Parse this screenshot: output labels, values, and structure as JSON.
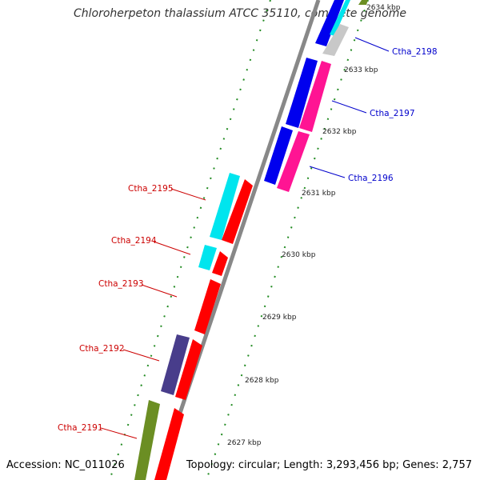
{
  "title": "Chloroherpeton thalassium ATCC 35110, complete genome",
  "footer": {
    "accession": "Accession: NC_011026",
    "summary": "Topology: circular; Length: 3,293,456 bp; Genes: 2,757"
  },
  "ticks": [
    "2634 kbp",
    "2633 kbp",
    "2632 kbp",
    "2631 kbp",
    "2630 kbp",
    "2629 kbp",
    "2628 kbp",
    "2627 kbp"
  ],
  "gene_labels": {
    "ctha_2198": "Ctha_2198",
    "ctha_2197": "Ctha_2197",
    "ctha_2196": "Ctha_2196",
    "ctha_2195": "Ctha_2195",
    "ctha_2194": "Ctha_2194",
    "ctha_2193": "Ctha_2193",
    "ctha_2192": "Ctha_2192",
    "ctha_2191": "Ctha_2191"
  },
  "colors": {
    "backbone": "#888888",
    "tick_dots": "#228b22",
    "red": "#ff0000",
    "blue": "#0000ee",
    "magenta": "#ff1493",
    "cyan": "#00e5ee",
    "gray": "#c8c8c8",
    "purple": "#483d8b",
    "olive": "#6b8e23",
    "label_forward": "#0000cc",
    "label_reverse": "#cc0000"
  }
}
